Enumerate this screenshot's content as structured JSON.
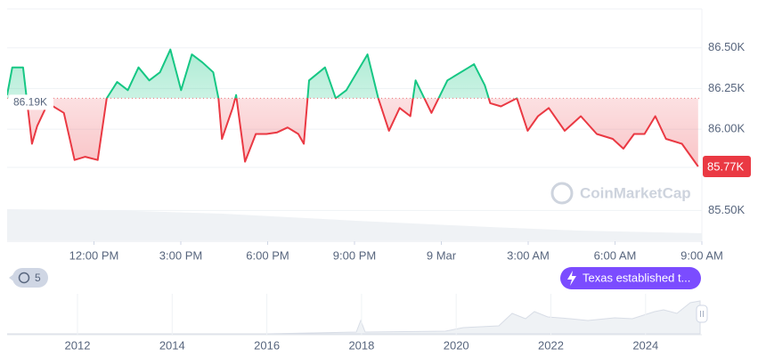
{
  "chart_data": {
    "type": "baseline-line",
    "x": [
      9.0,
      9.18,
      9.55,
      9.86,
      10.04,
      10.41,
      10.96,
      11.33,
      11.7,
      12.13,
      12.44,
      12.8,
      13.17,
      13.54,
      13.91,
      14.28,
      14.64,
      15.01,
      15.38,
      15.75,
      16.12,
      16.3,
      16.42,
      16.79,
      16.91,
      17.22,
      17.59,
      17.96,
      18.33,
      18.69,
      19.06,
      19.25,
      19.43,
      19.98,
      20.35,
      20.72,
      21.45,
      21.82,
      22.19,
      22.56,
      22.93,
      23.11,
      23.66,
      24.21,
      24.95,
      25.13,
      25.5,
      25.69,
      26.06,
      26.61,
      26.98,
      27.34,
      27.71,
      28.26,
      28.82,
      29.37,
      29.92,
      30.29,
      30.66,
      31.02,
      31.39,
      31.76,
      32.31,
      32.87
    ],
    "values": [
      86.21,
      86.38,
      86.38,
      85.91,
      86.02,
      86.16,
      86.1,
      85.81,
      85.83,
      85.81,
      86.19,
      86.29,
      86.24,
      86.38,
      86.3,
      86.35,
      86.49,
      86.24,
      86.46,
      86.41,
      86.35,
      86.19,
      85.94,
      86.13,
      86.21,
      85.8,
      85.97,
      85.97,
      85.98,
      86.01,
      85.97,
      85.91,
      86.3,
      86.38,
      86.19,
      86.24,
      86.46,
      86.19,
      85.99,
      86.13,
      86.08,
      86.3,
      86.1,
      86.3,
      86.38,
      86.4,
      86.27,
      86.16,
      86.14,
      86.19,
      85.99,
      86.08,
      86.13,
      85.99,
      86.08,
      85.97,
      85.94,
      85.88,
      85.97,
      85.97,
      86.08,
      85.94,
      85.91,
      85.77
    ],
    "baseline": {
      "value": 86.19,
      "label": "86.19K"
    },
    "last_price": {
      "value": 85.77,
      "label": "85.77K"
    },
    "up_color": "#16c784",
    "down_color": "#ea3943",
    "xlim": [
      9,
      33
    ],
    "xticks": [
      {
        "value": 12,
        "label": "12:00 PM"
      },
      {
        "value": 15,
        "label": "3:00 PM"
      },
      {
        "value": 18,
        "label": "6:00 PM"
      },
      {
        "value": 21,
        "label": "9:00 PM"
      },
      {
        "value": 24,
        "label": "9 Mar"
      },
      {
        "value": 27,
        "label": "3:00 AM"
      },
      {
        "value": 30,
        "label": "6:00 AM"
      },
      {
        "value": 33,
        "label": "9:00 AM"
      }
    ],
    "ylim": [
      85.31,
      86.74
    ],
    "yticks": [
      {
        "value": 85.5,
        "label": "85.50K"
      },
      {
        "value": 86,
        "label": "86.00K"
      },
      {
        "value": 86.25,
        "label": "86.25K"
      },
      {
        "value": 86.5,
        "label": "86.50K"
      }
    ],
    "grid": true
  },
  "watermark": "CoinMarketCap",
  "history_badge": "5",
  "event_pill": "Texas established t...",
  "navigator_years": [
    2012,
    2014,
    2016,
    2018,
    2020,
    2022,
    2024
  ]
}
